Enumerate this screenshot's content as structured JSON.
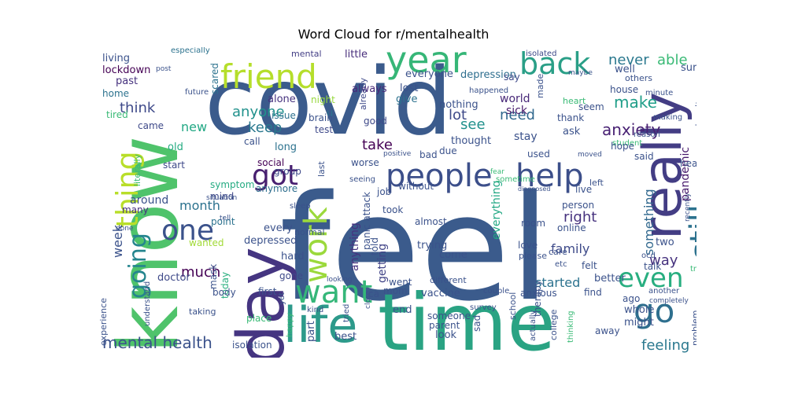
{
  "chart_data": {
    "type": "wordcloud",
    "title": "Word Cloud for r/mentalhealth",
    "background": "#ffffff",
    "colormap": "viridis",
    "words": [
      {
        "text": "feel",
        "rank": 1,
        "color": "#3b5b8c"
      },
      {
        "text": "covid",
        "rank": 2,
        "color": "#3b5b8c"
      },
      {
        "text": "know",
        "rank": 3,
        "color": "#4fc36b"
      },
      {
        "text": "time",
        "rank": 4,
        "color": "#2aa383"
      },
      {
        "text": "day",
        "rank": 5,
        "color": "#453581"
      },
      {
        "text": "life",
        "rank": 6,
        "color": "#2d9a8b"
      },
      {
        "text": "really",
        "rank": 7,
        "color": "#433d84"
      },
      {
        "text": "year",
        "rank": 8,
        "color": "#36b677"
      },
      {
        "text": "friend",
        "rank": 9,
        "color": "#b5de2b"
      },
      {
        "text": "people",
        "rank": 10,
        "color": "#3c4f8a"
      },
      {
        "text": "help",
        "rank": 11,
        "color": "#3c4f8a"
      },
      {
        "text": "back",
        "rank": 12,
        "color": "#2a9f87"
      },
      {
        "text": "thing",
        "rank": 13,
        "color": "#b8de29"
      },
      {
        "text": "got",
        "rank": 14,
        "color": "#481f70"
      },
      {
        "text": "one",
        "rank": 15,
        "color": "#3b528b"
      },
      {
        "text": "still",
        "rank": 16,
        "color": "#2c728e"
      },
      {
        "text": "go",
        "rank": 17,
        "color": "#2e6f8e"
      },
      {
        "text": "work",
        "rank": 18,
        "color": "#9bd93c"
      },
      {
        "text": "want",
        "rank": 19,
        "color": "#35b779"
      },
      {
        "text": "going",
        "rank": 20,
        "color": "#25858e"
      },
      {
        "text": "even",
        "rank": 21,
        "color": "#28ae80"
      },
      {
        "text": "mental health",
        "rank": 22,
        "color": "#3b528b"
      },
      {
        "text": "anxiety",
        "rank": 23,
        "color": "#482173"
      },
      {
        "text": "make",
        "rank": 24,
        "color": "#1f9e89"
      },
      {
        "text": "never",
        "rank": 25,
        "color": "#2a788e"
      },
      {
        "text": "able",
        "rank": 26,
        "color": "#3aba76"
      },
      {
        "text": "take",
        "rank": 27,
        "color": "#440154"
      },
      {
        "text": "much",
        "rank": 28,
        "color": "#440154"
      },
      {
        "text": "something",
        "rank": 29,
        "color": "#31688e"
      },
      {
        "text": "anyone",
        "rank": 30,
        "color": "#21918c"
      },
      {
        "text": "think",
        "rank": 31,
        "color": "#3e4989"
      },
      {
        "text": "keep",
        "rank": 32,
        "color": "#2a788e"
      },
      {
        "text": "need",
        "rank": 33,
        "color": "#31688e"
      },
      {
        "text": "see",
        "rank": 34,
        "color": "#21918c"
      },
      {
        "text": "lot",
        "rank": 35,
        "color": "#3e4a89"
      },
      {
        "text": "new",
        "rank": 36,
        "color": "#22a884"
      },
      {
        "text": "week",
        "rank": 37,
        "color": "#3b528b"
      },
      {
        "text": "month",
        "rank": 38,
        "color": "#2c728e"
      },
      {
        "text": "right",
        "rank": 39,
        "color": "#46327e"
      },
      {
        "text": "family",
        "rank": 40,
        "color": "#3e4a89"
      },
      {
        "text": "way",
        "rank": 41,
        "color": "#46327e"
      },
      {
        "text": "feeling",
        "rank": 42,
        "color": "#2a788e"
      },
      {
        "text": "started",
        "rank": 43,
        "color": "#2c728e"
      },
      {
        "text": "everything",
        "rank": 44,
        "color": "#22a884"
      },
      {
        "text": "getting",
        "rank": 45,
        "color": "#414487"
      },
      {
        "text": "anything",
        "rank": 46,
        "color": "#46337f"
      },
      {
        "text": "pandemic",
        "rank": 47,
        "color": "#481a6c"
      },
      {
        "text": "stay",
        "rank": 48,
        "color": "#3b528b"
      },
      {
        "text": "sick",
        "rank": 49,
        "color": "#481a6c"
      },
      {
        "text": "world",
        "rank": 50,
        "color": "#482878"
      },
      {
        "text": "depression",
        "rank": 51,
        "color": "#2e6e8e"
      },
      {
        "text": "everyone",
        "rank": 52,
        "color": "#3b528b"
      },
      {
        "text": "lost",
        "rank": 53,
        "color": "#3b528b"
      },
      {
        "text": "give",
        "rank": 54,
        "color": "#2c728e"
      },
      {
        "text": "nothing",
        "rank": 55,
        "color": "#3b528b"
      },
      {
        "text": "thought",
        "rank": 56,
        "color": "#3b528b"
      },
      {
        "text": "always",
        "rank": 57,
        "color": "#482878"
      },
      {
        "text": "little",
        "rank": 58,
        "color": "#472d7b"
      },
      {
        "text": "mental",
        "rank": 59,
        "color": "#433e85"
      },
      {
        "text": "alone",
        "rank": 60,
        "color": "#46327e"
      },
      {
        "text": "issue",
        "rank": 61,
        "color": "#2d708e"
      },
      {
        "text": "call",
        "rank": 62,
        "color": "#3b528b"
      },
      {
        "text": "long",
        "rank": 63,
        "color": "#2c728e"
      },
      {
        "text": "social",
        "rank": 64,
        "color": "#440154"
      },
      {
        "text": "group",
        "rank": 65,
        "color": "#3e4989"
      },
      {
        "text": "anymore",
        "rank": 66,
        "color": "#2e6e8e"
      },
      {
        "text": "symptom",
        "rank": 67,
        "color": "#25ab82"
      },
      {
        "text": "mind",
        "rank": 68,
        "color": "#3e4989"
      },
      {
        "text": "around",
        "rank": 69,
        "color": "#3b528b"
      },
      {
        "text": "many",
        "rank": 70,
        "color": "#46327e"
      },
      {
        "text": "point",
        "rank": 71,
        "color": "#2c728e"
      },
      {
        "text": "wanted",
        "rank": 72,
        "color": "#a2da37"
      },
      {
        "text": "depressed",
        "rank": 73,
        "color": "#3b528b"
      },
      {
        "text": "hard",
        "rank": 74,
        "color": "#3b528b"
      },
      {
        "text": "gone",
        "rank": 75,
        "color": "#3e4989"
      },
      {
        "text": "first",
        "rank": 76,
        "color": "#3b528b"
      },
      {
        "text": "doctor",
        "rank": 77,
        "color": "#3e4989"
      },
      {
        "text": "today",
        "rank": 78,
        "color": "#29af7f"
      },
      {
        "text": "isolation",
        "rank": 79,
        "color": "#3b528b"
      },
      {
        "text": "living",
        "rank": 80,
        "color": "#3b528b"
      },
      {
        "text": "lockdown",
        "rank": 81,
        "color": "#440154"
      },
      {
        "text": "past",
        "rank": 82,
        "color": "#46327e"
      },
      {
        "text": "home",
        "rank": 83,
        "color": "#2c728e"
      },
      {
        "text": "tired",
        "rank": 84,
        "color": "#3aba76"
      },
      {
        "text": "came",
        "rank": 85,
        "color": "#3e4989"
      },
      {
        "text": "old",
        "rank": 86,
        "color": "#25ab82"
      },
      {
        "text": "start",
        "rank": 87,
        "color": "#3e4989"
      },
      {
        "text": "scared",
        "rank": 88,
        "color": "#2c728e"
      },
      {
        "text": "especially",
        "rank": 89,
        "color": "#2c728e"
      },
      {
        "text": "post",
        "rank": 90,
        "color": "#3b528b"
      },
      {
        "text": "future",
        "rank": 91,
        "color": "#3b528b"
      },
      {
        "text": "night",
        "rank": 92,
        "color": "#97d83f"
      },
      {
        "text": "u",
        "rank": 93,
        "color": "#2c728e"
      },
      {
        "text": "brain",
        "rank": 94,
        "color": "#3b528b"
      },
      {
        "text": "test",
        "rank": 95,
        "color": "#3e4989"
      },
      {
        "text": "already",
        "rank": 96,
        "color": "#3e4989"
      },
      {
        "text": "good",
        "rank": 97,
        "color": "#3e4989"
      },
      {
        "text": "happened",
        "rank": 98,
        "color": "#3b528b"
      },
      {
        "text": "made",
        "rank": 99,
        "color": "#3b528b"
      },
      {
        "text": "say",
        "rank": 100,
        "color": "#3e4989"
      },
      {
        "text": "isolated",
        "rank": 101,
        "color": "#3e4989"
      },
      {
        "text": "well",
        "rank": 102,
        "color": "#3b528b"
      },
      {
        "text": "others",
        "rank": 103,
        "color": "#3b528b"
      },
      {
        "text": "house",
        "rank": 104,
        "color": "#3b528b"
      },
      {
        "text": "seem",
        "rank": 105,
        "color": "#3b528b"
      },
      {
        "text": "thank",
        "rank": 106,
        "color": "#3b528b"
      },
      {
        "text": "heart",
        "rank": 107,
        "color": "#3aba76"
      },
      {
        "text": "minute",
        "rank": 108,
        "color": "#3b528b"
      },
      {
        "text": "making",
        "rank": 109,
        "color": "#3b528b"
      },
      {
        "text": "sure",
        "rank": 110,
        "color": "#3b528b"
      },
      {
        "text": "despite",
        "rank": 111,
        "color": "#3b528b"
      },
      {
        "text": "reason",
        "rank": 112,
        "color": "#3b528b"
      },
      {
        "text": "student",
        "rank": 113,
        "color": "#3aba76"
      },
      {
        "text": "ask",
        "rank": 114,
        "color": "#3b528b"
      },
      {
        "text": "hope",
        "rank": 115,
        "color": "#3b528b"
      },
      {
        "text": "head",
        "rank": 116,
        "color": "#3b528b"
      },
      {
        "text": "said",
        "rank": 117,
        "color": "#3b528b"
      },
      {
        "text": "moved",
        "rank": 118,
        "color": "#3b528b"
      },
      {
        "text": "used",
        "rank": 119,
        "color": "#3b528b"
      },
      {
        "text": "sometime",
        "rank": 120,
        "color": "#3aba76"
      },
      {
        "text": "due",
        "rank": 121,
        "color": "#3b528b"
      },
      {
        "text": "bad",
        "rank": 122,
        "color": "#3b528b"
      },
      {
        "text": "positive",
        "rank": 123,
        "color": "#3b528b"
      },
      {
        "text": "last",
        "rank": 124,
        "color": "#3b528b"
      },
      {
        "text": "worse",
        "rank": 125,
        "color": "#3b528b"
      },
      {
        "text": "seeing",
        "rank": 126,
        "color": "#3b528b"
      },
      {
        "text": "without",
        "rank": 127,
        "color": "#3b528b"
      },
      {
        "text": "job",
        "rank": 128,
        "color": "#3b528b"
      },
      {
        "text": "took",
        "rank": 129,
        "color": "#3b528b"
      },
      {
        "text": "panic attack",
        "rank": 130,
        "color": "#3b528b"
      },
      {
        "text": "told",
        "rank": 131,
        "color": "#3b528b"
      },
      {
        "text": "almost",
        "rank": 132,
        "color": "#3b528b"
      },
      {
        "text": "live",
        "rank": 133,
        "color": "#3b528b"
      },
      {
        "text": "left",
        "rank": 134,
        "color": "#3b528b"
      },
      {
        "text": "person",
        "rank": 135,
        "color": "#3b528b"
      },
      {
        "text": "online",
        "rank": 136,
        "color": "#3b528b"
      },
      {
        "text": "room",
        "rank": 137,
        "color": "#3b528b"
      },
      {
        "text": "love",
        "rank": 138,
        "color": "#3b528b"
      },
      {
        "text": "care",
        "rank": 139,
        "color": "#3b528b"
      },
      {
        "text": "please",
        "rank": 140,
        "color": "#3b528b"
      },
      {
        "text": "etc",
        "rank": 141,
        "color": "#3b528b"
      },
      {
        "text": "felt",
        "rank": 142,
        "color": "#3b528b"
      },
      {
        "text": "two",
        "rank": 143,
        "color": "#3b528b"
      },
      {
        "text": "ocd",
        "rank": 144,
        "color": "#3b528b"
      },
      {
        "text": "talk",
        "rank": 145,
        "color": "#3b528b"
      },
      {
        "text": "try",
        "rank": 146,
        "color": "#3aba76"
      },
      {
        "text": "better",
        "rank": 147,
        "color": "#3b528b"
      },
      {
        "text": "find",
        "rank": 148,
        "color": "#3b528b"
      },
      {
        "text": "ago",
        "rank": 149,
        "color": "#3b528b"
      },
      {
        "text": "whole",
        "rank": 150,
        "color": "#3b528b"
      },
      {
        "text": "another",
        "rank": 151,
        "color": "#3b528b"
      },
      {
        "text": "completely",
        "rank": 152,
        "color": "#3b528b"
      },
      {
        "text": "might",
        "rank": 153,
        "color": "#3b528b"
      },
      {
        "text": "away",
        "rank": 154,
        "color": "#3b528b"
      },
      {
        "text": "problem",
        "rank": 155,
        "color": "#3b528b"
      },
      {
        "text": "ca",
        "rank": 156,
        "color": "#3b528b"
      },
      {
        "text": "went",
        "rank": 157,
        "color": "#3b528b"
      },
      {
        "text": "mom",
        "rank": 158,
        "color": "#3b528b"
      },
      {
        "text": "vaccine",
        "rank": 159,
        "color": "#3b528b"
      },
      {
        "text": "different",
        "rank": 160,
        "color": "#3b528b"
      },
      {
        "text": "anxious",
        "rank": 161,
        "color": "#3b528b"
      },
      {
        "text": "therapy",
        "rank": 162,
        "color": "#3b528b"
      },
      {
        "text": "school",
        "rank": 163,
        "color": "#3b528b"
      },
      {
        "text": "college",
        "rank": 164,
        "color": "#3b528b"
      },
      {
        "text": "actually",
        "rank": 165,
        "color": "#3b528b"
      },
      {
        "text": "thinking",
        "rank": 166,
        "color": "#3aba76"
      },
      {
        "text": "couple",
        "rank": 167,
        "color": "#3b528b"
      },
      {
        "text": "survey",
        "rank": 168,
        "color": "#3b528b"
      },
      {
        "text": "end",
        "rank": 169,
        "color": "#3b528b"
      },
      {
        "text": "someone",
        "rank": 170,
        "color": "#3b528b"
      },
      {
        "text": "parent",
        "rank": 171,
        "color": "#3b528b"
      },
      {
        "text": "look",
        "rank": 172,
        "color": "#3b528b"
      },
      {
        "text": "best",
        "rank": 173,
        "color": "#3b528b"
      },
      {
        "text": "sad",
        "rank": 174,
        "color": "#3b528b"
      },
      {
        "text": "part",
        "rank": 175,
        "color": "#3b528b"
      },
      {
        "text": "happy",
        "rank": 176,
        "color": "#3aba76"
      },
      {
        "text": "place",
        "rank": 177,
        "color": "#3aba76"
      },
      {
        "text": "kind",
        "rank": 178,
        "color": "#3b528b"
      },
      {
        "text": "tried",
        "rank": 179,
        "color": "#3b528b"
      },
      {
        "text": "close",
        "rank": 180,
        "color": "#3b528b"
      },
      {
        "text": "yet",
        "rank": 181,
        "color": "#3b528b"
      },
      {
        "text": "looking",
        "rank": 182,
        "color": "#3b528b"
      },
      {
        "text": "experience",
        "rank": 183,
        "color": "#3b528b"
      },
      {
        "text": "understand",
        "rank": 184,
        "color": "#3b528b"
      },
      {
        "text": "body",
        "rank": 185,
        "color": "#3b528b"
      },
      {
        "text": "mask",
        "rank": 186,
        "color": "#3b528b"
      },
      {
        "text": "taking",
        "rank": 187,
        "color": "#3b528b"
      },
      {
        "text": "done",
        "rank": 188,
        "color": "#3b528b"
      },
      {
        "text": "tell",
        "rank": 189,
        "color": "#3b528b"
      },
      {
        "text": "normal",
        "rank": 190,
        "color": "#3b528b"
      },
      {
        "text": "situation",
        "rank": 191,
        "color": "#3b528b"
      },
      {
        "text": "sleep",
        "rank": 192,
        "color": "#3b528b"
      },
      {
        "text": "literally",
        "rank": 193,
        "color": "#3aba76"
      },
      {
        "text": "every",
        "rank": 194,
        "color": "#3b528b"
      },
      {
        "text": "trying",
        "rank": 195,
        "color": "#3b528b"
      },
      {
        "text": "come",
        "rank": 196,
        "color": "#3b528b"
      },
      {
        "text": "maybe",
        "rank": 197,
        "color": "#3b528b"
      },
      {
        "text": "fear",
        "rank": 198,
        "color": "#3aba76"
      },
      {
        "text": "diagnosed",
        "rank": 199,
        "color": "#3b528b"
      },
      {
        "text": "recently",
        "rank": 200,
        "color": "#3b528b"
      }
    ]
  }
}
